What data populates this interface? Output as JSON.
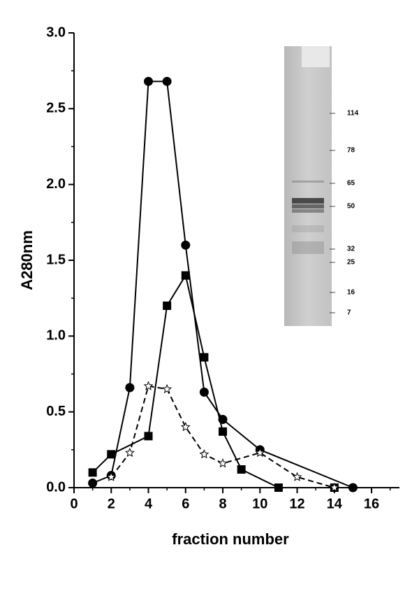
{
  "chart_data": {
    "type": "line",
    "xlabel": "fraction number",
    "ylabel": "A280nm",
    "xlim": [
      0,
      17.5
    ],
    "ylim": [
      0,
      3.0
    ],
    "xticks": [
      0,
      2,
      4,
      6,
      8,
      10,
      12,
      14,
      16
    ],
    "xminorticks": [
      1,
      3,
      5,
      7,
      9,
      11,
      13,
      15,
      17
    ],
    "yticks": [
      {
        "value": 0,
        "label": "0.0"
      },
      0.5,
      {
        "value": 1,
        "label": "1.0"
      },
      1.5,
      {
        "value": 2,
        "label": "2.0"
      },
      2.5,
      {
        "value": 3,
        "label": "3.0"
      }
    ],
    "yminorticks": [
      0.25,
      0.75,
      1.25,
      1.75,
      2.25,
      2.75
    ],
    "series": [
      {
        "color": "#000000",
        "marker": "circle",
        "dash": false,
        "x": [
          1,
          2,
          3,
          4,
          5,
          6,
          7,
          8,
          10,
          15
        ],
        "values": [
          0.03,
          0.08,
          0.66,
          2.68,
          2.68,
          1.6,
          0.63,
          0.45,
          0.25,
          0
        ]
      },
      {
        "color": "#000000",
        "marker": "square",
        "dash": false,
        "x": [
          1,
          2,
          4,
          5,
          6,
          7,
          8,
          9,
          11,
          14
        ],
        "values": [
          0.1,
          0.22,
          0.34,
          1.2,
          1.4,
          0.86,
          0.37,
          0.12,
          0,
          0
        ]
      },
      {
        "color": "#000000",
        "marker": "star",
        "dash": true,
        "x": [
          2,
          3,
          4,
          5,
          6,
          7,
          8,
          10,
          12,
          14
        ],
        "values": [
          0.07,
          0.23,
          0.67,
          0.65,
          0.4,
          0.22,
          0.16,
          0.23,
          0.07,
          0
        ]
      }
    ],
    "gel_markers": [
      114,
      78,
      65,
      50,
      32,
      25,
      16,
      7
    ]
  }
}
